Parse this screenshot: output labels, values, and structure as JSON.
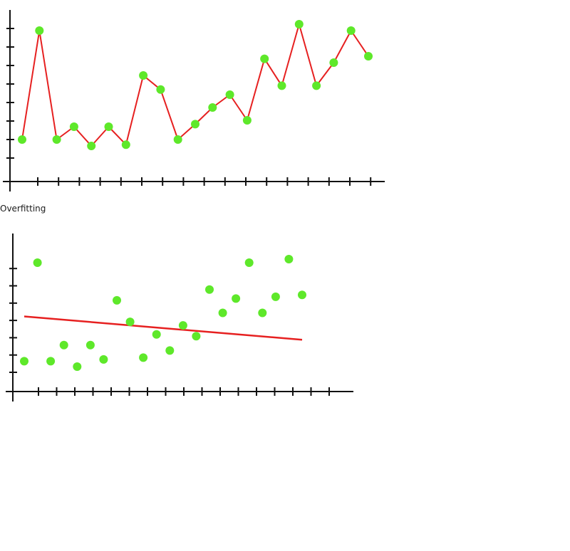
{
  "chart_data": [
    {
      "type": "line",
      "caption": "",
      "colors": {
        "line": "#e62020",
        "point": "#5ee82a",
        "axis": "#111111"
      },
      "points": [
        [
          1,
          2
        ],
        [
          2,
          10.5
        ],
        [
          3,
          2
        ],
        [
          4,
          3
        ],
        [
          5,
          1.5
        ],
        [
          6,
          3
        ],
        [
          7,
          1.6
        ],
        [
          8,
          7
        ],
        [
          9,
          5.9
        ],
        [
          10,
          2
        ],
        [
          11,
          3.2
        ],
        [
          12,
          4.5
        ],
        [
          13,
          5.5
        ],
        [
          14,
          3.5
        ],
        [
          15,
          8.3
        ],
        [
          16,
          6.2
        ],
        [
          17,
          11
        ],
        [
          18,
          6.2
        ],
        [
          19,
          8
        ],
        [
          20,
          10.5
        ],
        [
          21,
          8.5
        ]
      ],
      "xlim": [
        0,
        22
      ],
      "ylim": [
        0,
        12
      ]
    },
    {
      "type": "scatter",
      "caption": "Overfitting",
      "colors": {
        "line": "#e62020",
        "point": "#5ee82a",
        "axis": "#111111"
      },
      "points": [
        [
          1,
          1.5
        ],
        [
          2,
          7
        ],
        [
          3,
          1.5
        ],
        [
          4,
          2.4
        ],
        [
          5,
          1.2
        ],
        [
          6,
          2.4
        ],
        [
          7,
          1.6
        ],
        [
          8,
          4.9
        ],
        [
          9,
          3.7
        ],
        [
          10,
          1.7
        ],
        [
          11,
          3
        ],
        [
          12,
          2.1
        ],
        [
          13,
          3.5
        ],
        [
          14,
          2.9
        ],
        [
          15,
          5.5
        ],
        [
          16,
          4.2
        ],
        [
          17,
          5
        ],
        [
          18,
          7
        ],
        [
          19,
          4.2
        ],
        [
          20,
          5.1
        ],
        [
          21,
          7.2
        ],
        [
          22,
          5.2
        ]
      ],
      "trend": {
        "start": [
          1,
          4
        ],
        "end": [
          22,
          2.7
        ]
      },
      "xlim": [
        0,
        22
      ],
      "ylim": [
        0,
        8
      ]
    }
  ]
}
